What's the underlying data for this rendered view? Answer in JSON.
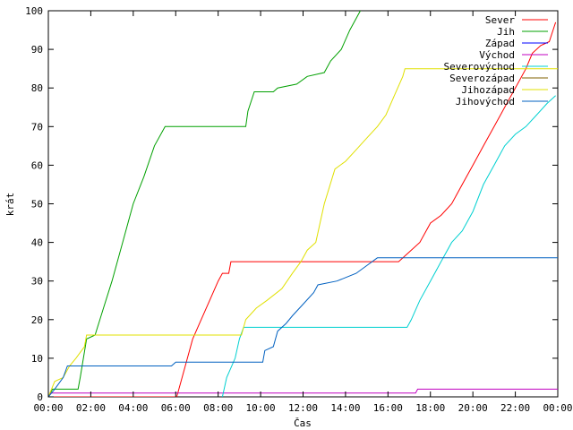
{
  "chart_data": {
    "type": "line",
    "title": "",
    "xlabel": "Čas",
    "ylabel": "krát",
    "xlim": [
      0,
      24
    ],
    "ylim": [
      0,
      100
    ],
    "grid": false,
    "legend_position": "top-right",
    "x_ticks": [
      {
        "value": 0,
        "label": "00:00"
      },
      {
        "value": 2,
        "label": "02:00"
      },
      {
        "value": 4,
        "label": "04:00"
      },
      {
        "value": 6,
        "label": "06:00"
      },
      {
        "value": 8,
        "label": "08:00"
      },
      {
        "value": 10,
        "label": "10:00"
      },
      {
        "value": 12,
        "label": "12:00"
      },
      {
        "value": 14,
        "label": "14:00"
      },
      {
        "value": 16,
        "label": "16:00"
      },
      {
        "value": 18,
        "label": "18:00"
      },
      {
        "value": 20,
        "label": "20:00"
      },
      {
        "value": 22,
        "label": "22:00"
      },
      {
        "value": 24,
        "label": "00:00"
      }
    ],
    "y_ticks": [
      0,
      10,
      20,
      30,
      40,
      50,
      60,
      70,
      80,
      90,
      100
    ],
    "series": [
      {
        "name": "Sever",
        "color": "#ff0000",
        "points": [
          [
            0,
            0
          ],
          [
            6.05,
            0
          ],
          [
            6.3,
            5
          ],
          [
            6.8,
            15
          ],
          [
            7.2,
            20
          ],
          [
            7.6,
            25
          ],
          [
            8.0,
            30
          ],
          [
            8.2,
            32
          ],
          [
            8.5,
            32
          ],
          [
            8.6,
            35
          ],
          [
            16.5,
            35
          ],
          [
            16.9,
            37
          ],
          [
            17.5,
            40
          ],
          [
            18.0,
            45
          ],
          [
            18.5,
            47
          ],
          [
            19.0,
            50
          ],
          [
            19.5,
            55
          ],
          [
            20.0,
            60
          ],
          [
            20.5,
            65
          ],
          [
            21.0,
            70
          ],
          [
            21.5,
            75
          ],
          [
            22.0,
            80
          ],
          [
            22.5,
            85
          ],
          [
            22.8,
            89
          ],
          [
            23.2,
            91
          ],
          [
            23.6,
            92
          ],
          [
            23.9,
            97
          ]
        ]
      },
      {
        "name": "Jih",
        "color": "#00a000",
        "points": [
          [
            0,
            0
          ],
          [
            0.2,
            2
          ],
          [
            1.4,
            2
          ],
          [
            1.5,
            5
          ],
          [
            1.8,
            15
          ],
          [
            2.2,
            16
          ],
          [
            2.6,
            23
          ],
          [
            3.0,
            30
          ],
          [
            3.5,
            40
          ],
          [
            4.0,
            50
          ],
          [
            4.5,
            57
          ],
          [
            5.0,
            65
          ],
          [
            5.5,
            70
          ],
          [
            9.3,
            70
          ],
          [
            9.4,
            74
          ],
          [
            9.7,
            79
          ],
          [
            10.6,
            79
          ],
          [
            10.8,
            80
          ],
          [
            11.7,
            81
          ],
          [
            12.2,
            83
          ],
          [
            13.0,
            84
          ],
          [
            13.3,
            87
          ],
          [
            13.8,
            90
          ],
          [
            14.2,
            95
          ],
          [
            14.5,
            98
          ],
          [
            14.7,
            100
          ]
        ]
      },
      {
        "name": "Západ",
        "color": "#0000ff",
        "points": []
      },
      {
        "name": "Východ",
        "color": "#c000c0",
        "points": [
          [
            0,
            0
          ],
          [
            0.1,
            1
          ],
          [
            17.3,
            1
          ],
          [
            17.4,
            2
          ],
          [
            24,
            2
          ]
        ]
      },
      {
        "name": "Severovýchod",
        "color": "#00d0d0",
        "points": [
          [
            8.2,
            0
          ],
          [
            8.4,
            5
          ],
          [
            8.8,
            10
          ],
          [
            9.0,
            15
          ],
          [
            9.2,
            18
          ],
          [
            16.9,
            18
          ],
          [
            17.1,
            20
          ],
          [
            17.5,
            25
          ],
          [
            18.0,
            30
          ],
          [
            18.5,
            35
          ],
          [
            19.0,
            40
          ],
          [
            19.5,
            43
          ],
          [
            20.0,
            48
          ],
          [
            20.5,
            55
          ],
          [
            21.0,
            60
          ],
          [
            21.5,
            65
          ],
          [
            22.0,
            68
          ],
          [
            22.5,
            70
          ],
          [
            23.0,
            73
          ],
          [
            23.5,
            76
          ],
          [
            23.9,
            78
          ]
        ]
      },
      {
        "name": "Severozápad",
        "color": "#806000",
        "points": []
      },
      {
        "name": "Jihozápad",
        "color": "#e0e000",
        "points": [
          [
            0,
            0
          ],
          [
            0.3,
            4
          ],
          [
            0.7,
            5
          ],
          [
            1.0,
            8
          ],
          [
            1.3,
            10
          ],
          [
            1.7,
            13
          ],
          [
            1.8,
            16
          ],
          [
            9.1,
            16
          ],
          [
            9.3,
            20
          ],
          [
            9.8,
            23
          ],
          [
            10.3,
            25
          ],
          [
            11.0,
            28
          ],
          [
            11.5,
            32
          ],
          [
            11.9,
            35
          ],
          [
            12.2,
            38
          ],
          [
            12.6,
            40
          ],
          [
            13.0,
            50
          ],
          [
            13.5,
            59
          ],
          [
            14.0,
            61
          ],
          [
            14.5,
            64
          ],
          [
            15.0,
            67
          ],
          [
            15.5,
            70
          ],
          [
            15.9,
            73
          ],
          [
            16.3,
            78
          ],
          [
            16.7,
            83
          ],
          [
            16.8,
            85
          ],
          [
            24,
            85
          ]
        ]
      },
      {
        "name": "Jihovýchod",
        "color": "#0060c0",
        "points": [
          [
            0,
            0
          ],
          [
            0.3,
            2
          ],
          [
            0.7,
            5
          ],
          [
            0.9,
            8
          ],
          [
            5.8,
            8
          ],
          [
            6.0,
            9
          ],
          [
            10.1,
            9
          ],
          [
            10.2,
            12
          ],
          [
            10.6,
            13
          ],
          [
            10.8,
            17
          ],
          [
            11.2,
            19
          ],
          [
            11.5,
            21
          ],
          [
            12.0,
            24
          ],
          [
            12.5,
            27
          ],
          [
            12.7,
            29
          ],
          [
            13.6,
            30
          ],
          [
            14.5,
            32
          ],
          [
            15.0,
            34
          ],
          [
            15.5,
            36
          ],
          [
            24,
            36
          ]
        ]
      }
    ]
  }
}
